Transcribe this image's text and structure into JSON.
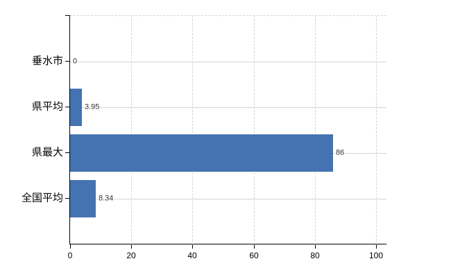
{
  "chart_data": {
    "type": "bar",
    "orientation": "horizontal",
    "title": "",
    "categories": [
      "垂水市",
      "県平均",
      "県最大",
      "全国平均"
    ],
    "values": [
      0,
      3.95,
      86,
      8.34
    ],
    "value_labels": [
      "0",
      "3.95",
      "86",
      "8.34"
    ],
    "x_ticks": [
      0,
      20,
      40,
      60,
      80,
      100
    ],
    "x_tick_labels": [
      "0",
      "20",
      "40",
      "60",
      "80",
      "100"
    ],
    "xlim": [
      0,
      103.5
    ],
    "grid": "both",
    "legend": "none",
    "colors": {
      "bar": "#4573b1",
      "grid": "#d3d3d3",
      "axis": "#000000",
      "value_label": "#333333",
      "tick_label": "#000000",
      "background": "#ffffff"
    }
  }
}
